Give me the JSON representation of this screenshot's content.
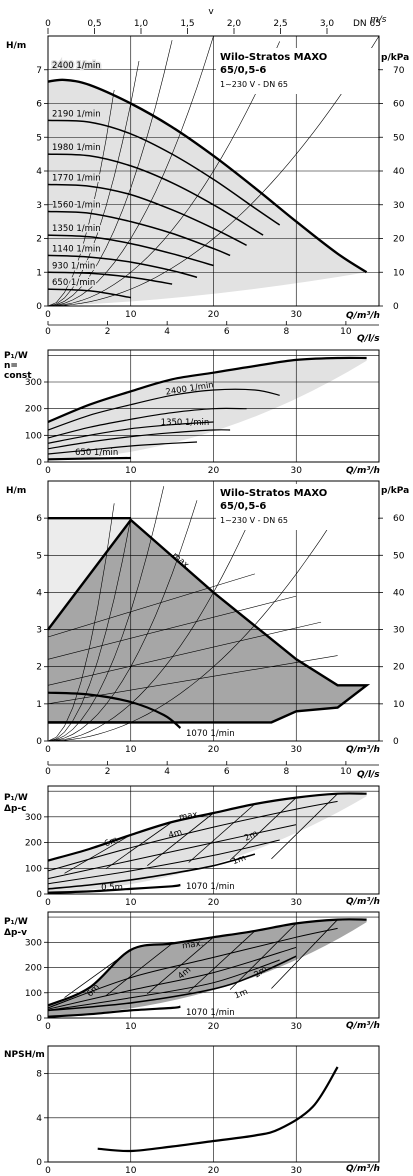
{
  "palette": {
    "region_light": "#e2e2e2",
    "region_dark": "#a6a6a6",
    "region_pale": "#ececec",
    "line": "#000000",
    "grid": "#000000"
  },
  "top_axis": {
    "label": "v",
    "unit": "m/s",
    "ticks": [
      "0",
      "0,5",
      "1,0",
      "1,5",
      "2,0",
      "2,5",
      "3,0"
    ],
    "pipe": "DN 65"
  },
  "chart_data": [
    {
      "id": "chart1",
      "type": "line",
      "title": "Wilo-Stratos MAXO",
      "subtitle": "65/0,5-6",
      "note": "1~230 V - DN 65",
      "ylabel": "H/m",
      "y2label": "p/kPa",
      "xlabel": "Q/m³/h",
      "ylim": [
        0,
        8
      ],
      "xlim": [
        0,
        40
      ],
      "y_ticks": [
        "0",
        "1",
        "2",
        "3",
        "4",
        "5",
        "6",
        "7"
      ],
      "y2_ticks": [
        "0",
        "10",
        "20",
        "30",
        "40",
        "50",
        "60",
        "70"
      ],
      "x_ticks": [
        "0",
        "10",
        "20",
        "30"
      ],
      "series": [
        {
          "name": "2400 1/min",
          "x": [
            0,
            2,
            5,
            10,
            15,
            20,
            25,
            30,
            35,
            38.5
          ],
          "y": [
            6.65,
            6.7,
            6.55,
            6.0,
            5.3,
            4.45,
            3.5,
            2.5,
            1.55,
            1.0
          ]
        },
        {
          "name": "2190 1/min",
          "x": [
            0,
            5,
            10,
            15,
            20,
            25,
            28
          ],
          "y": [
            5.5,
            5.45,
            5.1,
            4.5,
            3.75,
            2.9,
            2.4
          ]
        },
        {
          "name": "1980 1/min",
          "x": [
            0,
            5,
            10,
            15,
            20,
            25,
            26
          ],
          "y": [
            4.5,
            4.45,
            4.15,
            3.65,
            3.0,
            2.25,
            2.1
          ]
        },
        {
          "name": "1770 1/min",
          "x": [
            0,
            5,
            10,
            15,
            20,
            24
          ],
          "y": [
            3.6,
            3.55,
            3.3,
            2.85,
            2.3,
            1.8
          ]
        },
        {
          "name": "1560 1/min",
          "x": [
            0,
            5,
            10,
            15,
            20,
            22
          ],
          "y": [
            2.8,
            2.75,
            2.5,
            2.15,
            1.7,
            1.5
          ]
        },
        {
          "name": "1350 1/min",
          "x": [
            0,
            5,
            10,
            15,
            20
          ],
          "y": [
            2.1,
            2.05,
            1.85,
            1.55,
            1.2
          ]
        },
        {
          "name": "1140 1/min",
          "x": [
            0,
            5,
            10,
            15,
            18
          ],
          "y": [
            1.5,
            1.45,
            1.3,
            1.05,
            0.85
          ]
        },
        {
          "name": "930 1/min",
          "x": [
            0,
            5,
            10,
            15
          ],
          "y": [
            1.0,
            0.97,
            0.85,
            0.65
          ]
        },
        {
          "name": "650 1/min",
          "x": [
            0,
            5,
            10
          ],
          "y": [
            0.5,
            0.45,
            0.25
          ]
        }
      ]
    },
    {
      "id": "chart1-q",
      "type": "axis",
      "xlabel": "Q/l/s",
      "x_ticks": [
        "0",
        "2",
        "4",
        "6",
        "8",
        "10"
      ]
    },
    {
      "id": "chart2",
      "type": "line",
      "ylabel": "P₁/W",
      "ylabel2": "n=",
      "ylabel3": "const",
      "xlabel": "Q/m³/h",
      "ylim": [
        0,
        420
      ],
      "xlim": [
        0,
        40
      ],
      "y_ticks": [
        "0",
        "100",
        "200",
        "300"
      ],
      "x_ticks": [
        "0",
        "10",
        "20",
        "30"
      ],
      "series": [
        {
          "name": "2400 1/min",
          "x": [
            0,
            5,
            10,
            15,
            20,
            25,
            30,
            35,
            38.5
          ],
          "y": [
            150,
            215,
            265,
            310,
            335,
            360,
            383,
            390,
            390
          ]
        },
        {
          "name": "2190 1/min",
          "x": [
            0,
            5,
            10,
            15,
            20,
            25,
            28
          ],
          "y": [
            120,
            175,
            215,
            250,
            270,
            270,
            250
          ]
        },
        {
          "name": "1350 1/min",
          "x": [
            0,
            5,
            10,
            15,
            20,
            22
          ],
          "y": [
            50,
            75,
            95,
            110,
            120,
            120
          ]
        },
        {
          "name": "650 1/min",
          "x": [
            0,
            5,
            10
          ],
          "y": [
            10,
            13,
            15
          ]
        }
      ]
    },
    {
      "id": "chart3",
      "type": "line",
      "title": "Wilo-Stratos MAXO",
      "subtitle": "65/0,5-6",
      "note": "1~230 V - DN 65",
      "ylabel": "H/m",
      "y2label": "p/kPa",
      "xlabel": "Q/m³/h",
      "ylim": [
        0,
        7
      ],
      "xlim": [
        0,
        40
      ],
      "y_ticks": [
        "0",
        "1",
        "2",
        "3",
        "4",
        "5",
        "6"
      ],
      "y2_ticks": [
        "0",
        "10",
        "20",
        "30",
        "40",
        "50",
        "60"
      ],
      "x_ticks": [
        "0",
        "10",
        "20",
        "30"
      ],
      "annotations": [
        "max.",
        "1070 1/min"
      ],
      "series": [
        {
          "name": "max.",
          "x": [
            0,
            10,
            20,
            30,
            35,
            38.5,
            35,
            30,
            27
          ],
          "y": [
            3.0,
            5.95,
            4.0,
            2.2,
            1.5,
            1.5,
            0.9,
            0.8,
            0.5
          ]
        },
        {
          "name": "1070 1/min",
          "x": [
            0,
            5,
            10,
            14,
            16
          ],
          "y": [
            1.3,
            1.25,
            1.05,
            0.7,
            0.35
          ]
        }
      ]
    },
    {
      "id": "chart3-q",
      "type": "axis",
      "xlabel": "Q/l/s",
      "x_ticks": [
        "0",
        "2",
        "4",
        "6",
        "8",
        "10"
      ]
    },
    {
      "id": "chart4",
      "type": "line",
      "ylabel": "P₁/W",
      "ylabel2": "Δp-c",
      "xlabel": "Q/m³/h",
      "ylim": [
        0,
        420
      ],
      "xlim": [
        0,
        40
      ],
      "y_ticks": [
        "0",
        "100",
        "200",
        "300"
      ],
      "x_ticks": [
        "0",
        "10",
        "20",
        "30"
      ],
      "annotations": [
        "max.",
        "6m",
        "4m",
        "2m",
        "1m",
        "0,5m",
        "1070 1/min"
      ],
      "series": [
        {
          "name": "max.",
          "x": [
            0,
            5,
            10,
            15,
            20,
            25,
            30,
            35,
            38.5
          ],
          "y": [
            130,
            175,
            230,
            280,
            315,
            350,
            375,
            390,
            390
          ]
        },
        {
          "name": "1m",
          "x": [
            0,
            5,
            10,
            15,
            20,
            25
          ],
          "y": [
            20,
            35,
            55,
            80,
            110,
            155
          ]
        },
        {
          "name": "1070 1/min",
          "x": [
            0,
            5,
            10,
            15,
            16
          ],
          "y": [
            5,
            10,
            20,
            30,
            35
          ]
        }
      ]
    },
    {
      "id": "chart5",
      "type": "line",
      "ylabel": "P₁/W",
      "ylabel2": "Δp-v",
      "xlabel": "Q/m³/h",
      "ylim": [
        0,
        420
      ],
      "xlim": [
        0,
        40
      ],
      "y_ticks": [
        "0",
        "100",
        "200",
        "300"
      ],
      "x_ticks": [
        "0",
        "10",
        "20",
        "30"
      ],
      "annotations": [
        "max.",
        "6m",
        "4m",
        "2m",
        "1m",
        "1070 1/min"
      ],
      "series": [
        {
          "name": "max.",
          "x": [
            0,
            5,
            10,
            15,
            20,
            25,
            30,
            35,
            38.5
          ],
          "y": [
            50,
            120,
            270,
            295,
            320,
            345,
            375,
            390,
            390
          ]
        },
        {
          "name": "1m",
          "x": [
            0,
            10,
            20,
            25,
            30
          ],
          "y": [
            30,
            60,
            115,
            170,
            245
          ]
        },
        {
          "name": "1070 1/min",
          "x": [
            0,
            5,
            10,
            15,
            16
          ],
          "y": [
            5,
            15,
            30,
            40,
            45
          ]
        }
      ]
    },
    {
      "id": "chart6",
      "type": "line",
      "ylabel": "NPSH/m",
      "xlabel": "Q/m³/h",
      "ylim": [
        0,
        10.5
      ],
      "xlim": [
        0,
        40
      ],
      "y_ticks": [
        "0",
        "4",
        "8"
      ],
      "x_ticks": [
        "0",
        "10",
        "20",
        "30"
      ],
      "series": [
        {
          "name": "",
          "x": [
            6,
            10,
            15,
            20,
            25,
            28,
            32,
            35
          ],
          "y": [
            1.2,
            1.0,
            1.4,
            1.9,
            2.4,
            3.0,
            5.0,
            8.6
          ]
        }
      ]
    }
  ]
}
